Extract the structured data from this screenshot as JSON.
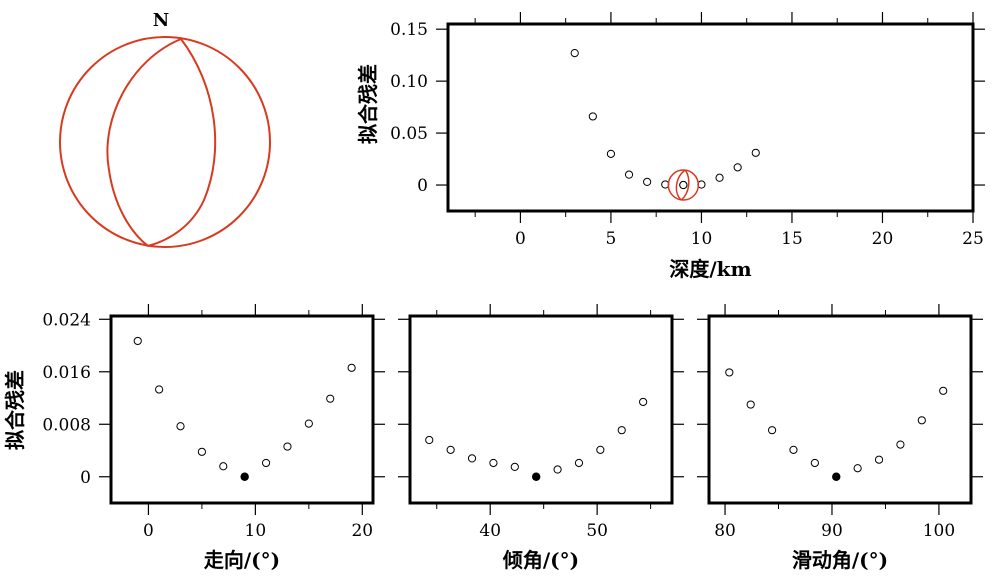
{
  "beachball": {
    "north_label": "N",
    "color": "#d93a1f"
  },
  "chart_data": [
    {
      "id": "depth",
      "type": "scatter",
      "xlabel": "深度/km",
      "ylabel": "拟合残差",
      "xlim": [
        -4,
        25
      ],
      "ylim": [
        -0.025,
        0.155
      ],
      "xticks": [
        0,
        5,
        10,
        15,
        20,
        25
      ],
      "yticks": [
        0,
        0.05,
        0.1,
        0.15
      ],
      "ytick_labels": [
        "0",
        "0.05",
        "0.10",
        "0.15"
      ],
      "points": [
        {
          "x": 3,
          "y": 0.127
        },
        {
          "x": 4,
          "y": 0.066
        },
        {
          "x": 5,
          "y": 0.03
        },
        {
          "x": 6,
          "y": 0.01
        },
        {
          "x": 7,
          "y": 0.003
        },
        {
          "x": 8,
          "y": 0.0005
        },
        {
          "x": 9,
          "y": 0.0
        },
        {
          "x": 10,
          "y": 0.0005
        },
        {
          "x": 11,
          "y": 0.007
        },
        {
          "x": 12,
          "y": 0.017
        },
        {
          "x": 13,
          "y": 0.031
        }
      ],
      "best": {
        "x": 9,
        "y": 0.0,
        "marker": "beachball"
      }
    },
    {
      "id": "strike",
      "type": "scatter",
      "xlabel": "走向/(°)",
      "ylabel": "拟合残差",
      "xlim": [
        -3.5,
        21
      ],
      "ylim": [
        -0.004,
        0.0245
      ],
      "xticks": [
        0,
        10,
        20
      ],
      "yticks": [
        0,
        0.008,
        0.016,
        0.024
      ],
      "ytick_labels": [
        "0",
        "0.008",
        "0.016",
        "0.024"
      ],
      "points": [
        {
          "x": -1,
          "y": 0.0207
        },
        {
          "x": 1,
          "y": 0.0133
        },
        {
          "x": 3,
          "y": 0.0077
        },
        {
          "x": 5,
          "y": 0.0038
        },
        {
          "x": 7,
          "y": 0.0016
        },
        {
          "x": 11,
          "y": 0.0021
        },
        {
          "x": 13,
          "y": 0.0046
        },
        {
          "x": 15,
          "y": 0.0081
        },
        {
          "x": 17,
          "y": 0.0119
        },
        {
          "x": 19,
          "y": 0.0166
        }
      ],
      "best": {
        "x": 9,
        "y": 0.0,
        "marker": "filled"
      }
    },
    {
      "id": "dip",
      "type": "scatter",
      "xlabel": "倾角/(°)",
      "ylabel": "",
      "xlim": [
        32.5,
        57
      ],
      "ylim": [
        -0.004,
        0.0245
      ],
      "xticks": [
        40,
        50
      ],
      "yticks": [
        0,
        0.008,
        0.016,
        0.024
      ],
      "ytick_labels": [],
      "points": [
        {
          "x": 34.3,
          "y": 0.0056
        },
        {
          "x": 36.3,
          "y": 0.0041
        },
        {
          "x": 38.3,
          "y": 0.0028
        },
        {
          "x": 40.3,
          "y": 0.0021
        },
        {
          "x": 42.3,
          "y": 0.0015
        },
        {
          "x": 46.3,
          "y": 0.0011
        },
        {
          "x": 48.3,
          "y": 0.0021
        },
        {
          "x": 50.3,
          "y": 0.0041
        },
        {
          "x": 52.3,
          "y": 0.0071
        },
        {
          "x": 54.3,
          "y": 0.0114
        }
      ],
      "best": {
        "x": 44.3,
        "y": 0.0,
        "marker": "filled"
      }
    },
    {
      "id": "rake",
      "type": "scatter",
      "xlabel": "滑动角/(°)",
      "ylabel": "",
      "xlim": [
        78.5,
        103
      ],
      "ylim": [
        -0.004,
        0.0245
      ],
      "xticks": [
        80,
        90,
        100
      ],
      "yticks": [
        0,
        0.008,
        0.016,
        0.024
      ],
      "ytick_labels": [],
      "points": [
        {
          "x": 80.4,
          "y": 0.0159
        },
        {
          "x": 82.4,
          "y": 0.011
        },
        {
          "x": 84.4,
          "y": 0.0071
        },
        {
          "x": 86.4,
          "y": 0.0041
        },
        {
          "x": 88.4,
          "y": 0.0021
        },
        {
          "x": 92.4,
          "y": 0.0013
        },
        {
          "x": 94.4,
          "y": 0.0026
        },
        {
          "x": 96.4,
          "y": 0.0049
        },
        {
          "x": 98.4,
          "y": 0.0086
        },
        {
          "x": 100.4,
          "y": 0.0131
        }
      ],
      "best": {
        "x": 90.4,
        "y": 0.0,
        "marker": "filled"
      }
    }
  ]
}
